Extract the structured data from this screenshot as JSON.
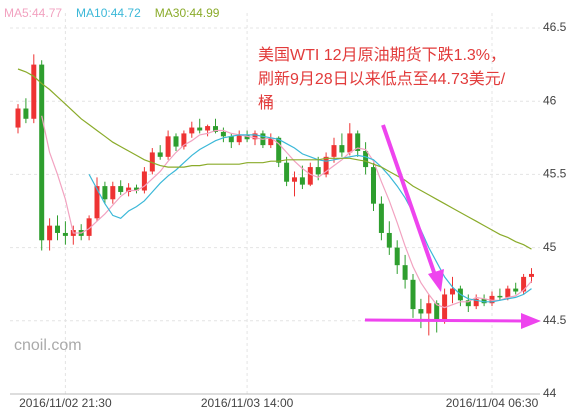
{
  "chart_data": {
    "type": "candlestick",
    "categories": [
      null,
      null,
      null,
      null,
      null,
      null,
      "2016/11/02 21:30",
      null,
      null,
      null,
      null,
      null,
      null,
      null,
      null,
      null,
      null,
      null,
      null,
      null,
      null,
      null,
      null,
      null,
      null,
      null,
      null,
      null,
      null,
      "2016/11/03 14:00",
      null,
      null,
      null,
      null,
      null,
      null,
      null,
      null,
      null,
      null,
      null,
      null,
      null,
      null,
      null,
      null,
      null,
      null,
      null,
      null,
      null,
      null,
      null,
      null,
      null,
      null,
      null,
      null,
      null,
      null,
      "2016/11/04 06:30",
      null,
      null,
      null,
      null,
      null
    ],
    "open": [
      45.82,
      45.95,
      45.88,
      46.25,
      45.05,
      45.15,
      45.1,
      45.08,
      45.12,
      45.08,
      45.2,
      45.42,
      45.33,
      45.42,
      45.38,
      45.41,
      45.39,
      45.52,
      45.65,
      45.62,
      45.76,
      45.69,
      45.78,
      45.82,
      45.8,
      45.83,
      45.79,
      45.76,
      45.72,
      45.77,
      45.74,
      45.78,
      45.7,
      45.75,
      45.58,
      45.45,
      45.48,
      45.43,
      45.55,
      45.5,
      45.62,
      45.7,
      45.65,
      45.78,
      45.66,
      45.55,
      45.3,
      45.1,
      45.0,
      44.88,
      44.78,
      44.58,
      44.55,
      44.62,
      44.5,
      44.68,
      44.72,
      44.64,
      44.6,
      44.65,
      44.62,
      44.67,
      44.66,
      44.72,
      44.7,
      44.8
    ],
    "high": [
      45.98,
      46.02,
      46.32,
      46.28,
      45.2,
      45.22,
      45.18,
      45.15,
      45.16,
      45.22,
      45.48,
      45.45,
      45.45,
      45.46,
      45.44,
      45.43,
      45.55,
      45.68,
      45.7,
      45.8,
      45.78,
      45.8,
      45.86,
      45.88,
      45.84,
      45.88,
      45.82,
      45.78,
      45.8,
      45.8,
      45.8,
      45.8,
      45.78,
      45.76,
      45.62,
      45.52,
      45.56,
      45.58,
      45.62,
      45.65,
      45.75,
      45.78,
      45.85,
      45.8,
      45.72,
      45.58,
      45.35,
      45.18,
      45.05,
      44.95,
      44.82,
      44.65,
      44.68,
      44.64,
      44.72,
      44.8,
      44.74,
      44.68,
      44.68,
      44.68,
      44.7,
      44.72,
      44.74,
      44.76,
      44.82,
      44.86
    ],
    "low": [
      45.78,
      45.85,
      45.85,
      44.98,
      44.98,
      45.05,
      45.02,
      45.02,
      45.05,
      45.05,
      45.18,
      45.3,
      45.3,
      45.36,
      45.35,
      45.37,
      45.37,
      45.5,
      45.6,
      45.6,
      45.66,
      45.67,
      45.75,
      45.78,
      45.76,
      45.78,
      45.72,
      45.68,
      45.7,
      45.72,
      45.7,
      45.68,
      45.68,
      45.55,
      45.42,
      45.35,
      45.4,
      45.42,
      45.46,
      45.48,
      45.58,
      45.62,
      45.63,
      45.62,
      45.5,
      45.25,
      45.05,
      44.95,
      44.82,
      44.72,
      44.52,
      44.45,
      44.4,
      44.42,
      44.48,
      44.62,
      44.6,
      44.56,
      44.58,
      44.6,
      44.6,
      44.64,
      44.64,
      44.68,
      44.68,
      44.76
    ],
    "close": [
      45.95,
      45.88,
      46.25,
      45.05,
      45.15,
      45.1,
      45.08,
      45.12,
      45.08,
      45.2,
      45.42,
      45.33,
      45.42,
      45.38,
      45.41,
      45.39,
      45.52,
      45.65,
      45.62,
      45.76,
      45.69,
      45.78,
      45.82,
      45.8,
      45.83,
      45.79,
      45.76,
      45.72,
      45.77,
      45.74,
      45.78,
      45.7,
      45.75,
      45.58,
      45.45,
      45.48,
      45.43,
      45.55,
      45.5,
      45.62,
      45.7,
      45.65,
      45.78,
      45.66,
      45.55,
      45.3,
      45.1,
      45.0,
      44.88,
      44.78,
      44.58,
      44.55,
      44.62,
      44.5,
      44.68,
      44.72,
      44.64,
      44.6,
      44.65,
      44.62,
      44.67,
      44.66,
      44.72,
      44.7,
      44.8,
      44.82
    ],
    "up_color": "#ee3333",
    "down_color": "#2e9e2e",
    "series": [
      {
        "name": "MA5:44.77",
        "color": "#f2a2c0",
        "values": [
          null,
          null,
          null,
          45.9,
          45.65,
          45.5,
          45.33,
          45.1,
          45.1,
          45.13,
          45.18,
          45.23,
          45.29,
          45.35,
          45.39,
          45.39,
          45.42,
          45.47,
          45.52,
          45.59,
          45.65,
          45.7,
          45.73,
          45.77,
          45.78,
          45.8,
          45.8,
          45.78,
          45.77,
          45.76,
          45.75,
          45.74,
          45.75,
          45.71,
          45.65,
          45.59,
          45.54,
          45.5,
          45.48,
          45.52,
          45.56,
          45.6,
          45.65,
          45.68,
          45.67,
          45.59,
          45.45,
          45.32,
          45.17,
          45.01,
          44.87,
          44.76,
          44.68,
          44.61,
          44.59,
          44.61,
          44.63,
          44.63,
          44.66,
          44.65,
          44.64,
          44.64,
          44.66,
          44.67,
          44.71,
          44.77
        ]
      },
      {
        "name": "MA10:44.72",
        "color": "#3bb8d8",
        "values": [
          null,
          null,
          null,
          null,
          null,
          null,
          null,
          null,
          null,
          45.5,
          45.4,
          45.3,
          45.22,
          45.2,
          45.25,
          45.28,
          45.32,
          45.38,
          45.44,
          45.49,
          45.53,
          45.58,
          45.63,
          45.67,
          45.7,
          45.73,
          45.75,
          45.76,
          45.77,
          45.77,
          45.77,
          45.76,
          45.75,
          45.74,
          45.71,
          45.68,
          45.64,
          45.62,
          45.6,
          45.59,
          45.6,
          45.61,
          45.62,
          45.63,
          45.62,
          45.6,
          45.55,
          45.49,
          45.42,
          45.34,
          45.24,
          45.12,
          45.0,
          44.9,
          44.8,
          44.73,
          44.68,
          44.65,
          44.64,
          44.63,
          44.63,
          44.64,
          44.65,
          44.66,
          44.68,
          44.72
        ]
      },
      {
        "name": "MA30:44.99",
        "color": "#8aab2a",
        "values": [
          46.22,
          46.2,
          46.17,
          46.12,
          46.08,
          46.03,
          45.98,
          45.93,
          45.88,
          45.84,
          45.8,
          45.76,
          45.72,
          45.69,
          45.66,
          45.63,
          45.6,
          45.58,
          45.56,
          45.55,
          45.55,
          45.55,
          45.56,
          45.56,
          45.57,
          45.57,
          45.57,
          45.57,
          45.57,
          45.58,
          45.58,
          45.58,
          45.59,
          45.59,
          45.6,
          45.6,
          45.6,
          45.6,
          45.6,
          45.61,
          45.61,
          45.61,
          45.61,
          45.6,
          45.59,
          45.57,
          45.55,
          45.52,
          45.49,
          45.46,
          45.42,
          45.39,
          45.36,
          45.33,
          45.3,
          45.27,
          45.24,
          45.21,
          45.18,
          45.15,
          45.12,
          45.09,
          45.07,
          45.04,
          45.02,
          44.99
        ]
      }
    ],
    "annotation": [
      "美国WTI 12月原油期货下跌1.3%，",
      "刷新9月28日以来低点至44.73美元/",
      "桶"
    ],
    "watermark": "cnoil.com",
    "ylim": [
      44,
      46.5
    ],
    "yticks": [
      44,
      44.5,
      45,
      45.5,
      46,
      46.5
    ],
    "grid": true
  }
}
